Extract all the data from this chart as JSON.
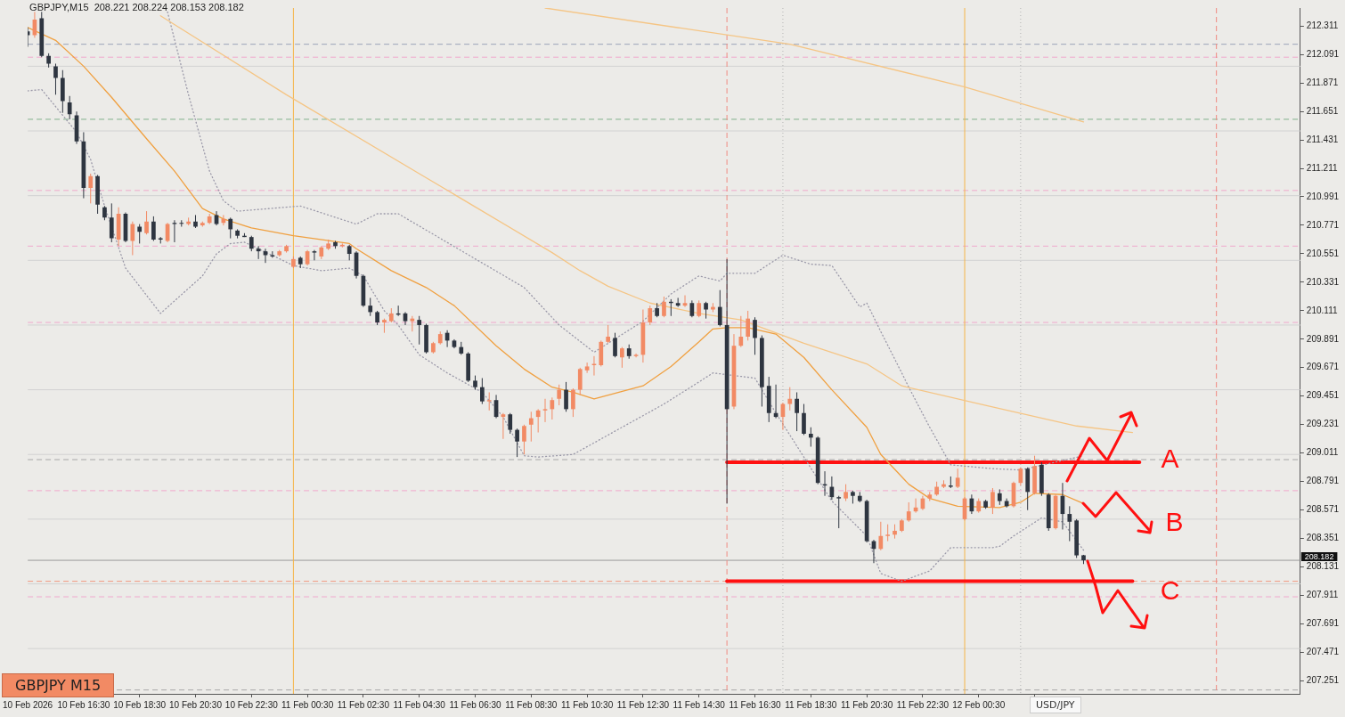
{
  "chart_data": {
    "type": "candlestick",
    "title": "GBPJPY,M15  208.221 208.224 208.153 208.182",
    "x": [
      "2026-02-10T14:30",
      "2026-02-10T14:45",
      "2026-02-10T15:00",
      "2026-02-10T15:15",
      "2026-02-10T15:30",
      "2026-02-10T15:45",
      "2026-02-10T16:00",
      "2026-02-10T16:15",
      "2026-02-10T16:30",
      "2026-02-10T16:45",
      "2026-02-10T17:00",
      "2026-02-10T17:15",
      "2026-02-10T17:30",
      "2026-02-10T17:45",
      "2026-02-10T18:00",
      "2026-02-10T18:15",
      "2026-02-10T18:30",
      "2026-02-10T18:45",
      "2026-02-10T19:00",
      "2026-02-10T19:15",
      "2026-02-10T19:30",
      "2026-02-10T19:45",
      "2026-02-10T20:00",
      "2026-02-10T20:15",
      "2026-02-10T20:30",
      "2026-02-10T20:45",
      "2026-02-10T21:00",
      "2026-02-10T21:15",
      "2026-02-10T21:30",
      "2026-02-10T21:45",
      "2026-02-10T22:00",
      "2026-02-10T22:15",
      "2026-02-10T22:30",
      "2026-02-10T22:45",
      "2026-02-10T23:00",
      "2026-02-10T23:15",
      "2026-02-10T23:30",
      "2026-02-10T23:45",
      "2026-02-11T00:00",
      "2026-02-11T00:15",
      "2026-02-11T00:30",
      "2026-02-11T00:45",
      "2026-02-11T01:00",
      "2026-02-11T01:15",
      "2026-02-11T01:30",
      "2026-02-11T01:45",
      "2026-02-11T02:00",
      "2026-02-11T02:15",
      "2026-02-11T02:30",
      "2026-02-11T02:45",
      "2026-02-11T03:00",
      "2026-02-11T03:15",
      "2026-02-11T03:30",
      "2026-02-11T03:45",
      "2026-02-11T04:00",
      "2026-02-11T04:15",
      "2026-02-11T04:30",
      "2026-02-11T04:45",
      "2026-02-11T05:00",
      "2026-02-11T05:15",
      "2026-02-11T05:30",
      "2026-02-11T05:45",
      "2026-02-11T06:00",
      "2026-02-11T06:15",
      "2026-02-11T06:30",
      "2026-02-11T06:45",
      "2026-02-11T07:00",
      "2026-02-11T07:15",
      "2026-02-11T07:30",
      "2026-02-11T07:45",
      "2026-02-11T08:00",
      "2026-02-11T08:15",
      "2026-02-11T08:30",
      "2026-02-11T08:45",
      "2026-02-11T09:00",
      "2026-02-11T09:15",
      "2026-02-11T09:30",
      "2026-02-11T09:45",
      "2026-02-11T10:00",
      "2026-02-11T10:15",
      "2026-02-11T10:30",
      "2026-02-11T10:45",
      "2026-02-11T11:00",
      "2026-02-11T11:15",
      "2026-02-11T11:30",
      "2026-02-11T11:45",
      "2026-02-11T12:00",
      "2026-02-11T12:15",
      "2026-02-11T12:30",
      "2026-02-11T12:45",
      "2026-02-11T13:00",
      "2026-02-11T13:15",
      "2026-02-11T13:30",
      "2026-02-11T13:45",
      "2026-02-11T14:00",
      "2026-02-11T14:15",
      "2026-02-11T14:30",
      "2026-02-11T14:45",
      "2026-02-11T15:00",
      "2026-02-11T15:15",
      "2026-02-11T15:30",
      "2026-02-11T15:45",
      "2026-02-11T16:00",
      "2026-02-11T16:15",
      "2026-02-11T16:30",
      "2026-02-11T16:45",
      "2026-02-11T17:00",
      "2026-02-11T17:15",
      "2026-02-11T17:30",
      "2026-02-11T17:45",
      "2026-02-11T18:00",
      "2026-02-11T18:15",
      "2026-02-11T18:30",
      "2026-02-11T18:45",
      "2026-02-11T19:00",
      "2026-02-11T19:15",
      "2026-02-11T19:30",
      "2026-02-11T19:45",
      "2026-02-11T20:00",
      "2026-02-11T20:15",
      "2026-02-11T20:30",
      "2026-02-11T20:45",
      "2026-02-11T21:00",
      "2026-02-11T21:15",
      "2026-02-11T21:30",
      "2026-02-11T21:45",
      "2026-02-11T22:00",
      "2026-02-11T22:15",
      "2026-02-11T22:30",
      "2026-02-11T22:45",
      "2026-02-11T23:00",
      "2026-02-11T23:15",
      "2026-02-11T23:30",
      "2026-02-11T23:45",
      "2026-02-12T00:00",
      "2026-02-12T00:15",
      "2026-02-12T00:30",
      "2026-02-12T00:45",
      "2026-02-12T01:00",
      "2026-02-12T01:15",
      "2026-02-12T01:30",
      "2026-02-12T01:45",
      "2026-02-12T02:00",
      "2026-02-12T02:15",
      "2026-02-12T02:30",
      "2026-02-12T02:45",
      "2026-02-12T03:00",
      "2026-02-12T03:15",
      "2026-02-12T03:30",
      "2026-02-12T03:45",
      "2026-02-12T04:00",
      "2026-02-12T04:15"
    ],
    "ohlc": [
      [
        212.27,
        212.3,
        212.15,
        212.24
      ],
      [
        212.24,
        212.42,
        212.22,
        212.36
      ],
      [
        212.37,
        212.42,
        212.07,
        212.08
      ],
      [
        212.08,
        212.1,
        211.99,
        212.02
      ],
      [
        212.0,
        212.02,
        211.78,
        211.91
      ],
      [
        211.91,
        211.97,
        211.64,
        211.73
      ],
      [
        211.72,
        211.77,
        211.59,
        211.63
      ],
      [
        211.62,
        211.65,
        211.4,
        211.42
      ],
      [
        211.42,
        211.49,
        210.98,
        211.06
      ],
      [
        211.06,
        211.17,
        210.94,
        211.15
      ],
      [
        211.15,
        211.16,
        210.86,
        210.93
      ],
      [
        210.91,
        210.92,
        210.81,
        210.83
      ],
      [
        210.83,
        210.94,
        210.64,
        210.67
      ],
      [
        210.66,
        210.91,
        210.61,
        210.86
      ],
      [
        210.86,
        210.87,
        210.64,
        210.65
      ],
      [
        210.65,
        210.8,
        210.54,
        210.78
      ],
      [
        210.76,
        210.78,
        210.63,
        210.72
      ],
      [
        210.71,
        210.88,
        210.7,
        210.8
      ],
      [
        210.8,
        210.84,
        210.65,
        210.66
      ],
      [
        210.67,
        210.68,
        210.63,
        210.66
      ],
      [
        210.65,
        210.79,
        210.64,
        210.78
      ],
      [
        210.79,
        210.81,
        210.64,
        210.78
      ],
      [
        210.79,
        210.81,
        210.76,
        210.79
      ],
      [
        210.78,
        210.83,
        210.77,
        210.8
      ],
      [
        210.8,
        210.85,
        210.75,
        210.76
      ],
      [
        210.77,
        210.8,
        210.76,
        210.79
      ],
      [
        210.79,
        210.86,
        210.78,
        210.84
      ],
      [
        210.85,
        210.88,
        210.77,
        210.78
      ],
      [
        210.79,
        210.85,
        210.77,
        210.82
      ],
      [
        210.82,
        210.83,
        210.67,
        210.74
      ],
      [
        210.73,
        210.74,
        210.67,
        210.69
      ],
      [
        210.69,
        210.71,
        210.68,
        210.68
      ],
      [
        210.68,
        210.69,
        210.57,
        210.59
      ],
      [
        210.59,
        210.61,
        210.51,
        210.57
      ],
      [
        210.57,
        210.59,
        210.48,
        210.54
      ],
      [
        210.54,
        210.57,
        210.52,
        210.53
      ],
      [
        210.54,
        210.58,
        210.53,
        210.57
      ],
      [
        210.57,
        210.62,
        210.56,
        210.61
      ],
      [
        210.45,
        210.53,
        210.44,
        210.51
      ],
      [
        210.52,
        210.53,
        210.44,
        210.47
      ],
      [
        210.47,
        210.58,
        210.46,
        210.57
      ],
      [
        210.57,
        210.58,
        210.5,
        210.56
      ],
      [
        210.53,
        210.61,
        210.51,
        210.6
      ],
      [
        210.59,
        210.66,
        210.58,
        210.63
      ],
      [
        210.64,
        210.65,
        210.59,
        210.61
      ],
      [
        210.61,
        210.63,
        210.6,
        210.62
      ],
      [
        210.61,
        210.62,
        210.5,
        210.55
      ],
      [
        210.56,
        210.57,
        210.36,
        210.38
      ],
      [
        210.38,
        210.39,
        210.14,
        210.15
      ],
      [
        210.15,
        210.21,
        210.07,
        210.1
      ],
      [
        210.1,
        210.11,
        210.0,
        210.02
      ],
      [
        210.02,
        210.05,
        209.94,
        210.04
      ],
      [
        210.03,
        210.13,
        210.02,
        210.09
      ],
      [
        210.09,
        210.15,
        210.07,
        210.08
      ],
      [
        210.09,
        210.1,
        210.0,
        210.03
      ],
      [
        210.03,
        210.07,
        209.95,
        210.05
      ],
      [
        210.04,
        210.07,
        209.85,
        210.0
      ],
      [
        210.0,
        210.01,
        209.78,
        209.79
      ],
      [
        209.79,
        209.87,
        209.78,
        209.86
      ],
      [
        209.86,
        209.95,
        209.85,
        209.93
      ],
      [
        209.94,
        209.96,
        209.83,
        209.88
      ],
      [
        209.88,
        209.89,
        209.82,
        209.83
      ],
      [
        209.83,
        209.87,
        209.77,
        209.78
      ],
      [
        209.78,
        209.79,
        209.56,
        209.57
      ],
      [
        209.57,
        209.61,
        209.5,
        209.52
      ],
      [
        209.52,
        209.59,
        209.39,
        209.41
      ],
      [
        209.41,
        209.48,
        209.34,
        209.42
      ],
      [
        209.42,
        209.46,
        209.28,
        209.29
      ],
      [
        209.29,
        209.32,
        209.12,
        209.31
      ],
      [
        209.31,
        209.32,
        209.16,
        209.19
      ],
      [
        209.19,
        209.2,
        208.98,
        209.1
      ],
      [
        209.1,
        209.23,
        209.0,
        209.22
      ],
      [
        209.23,
        209.33,
        209.1,
        209.28
      ],
      [
        209.29,
        209.35,
        209.17,
        209.34
      ],
      [
        209.34,
        209.43,
        209.25,
        209.35
      ],
      [
        209.35,
        209.44,
        209.27,
        209.42
      ],
      [
        209.43,
        209.54,
        209.38,
        209.5
      ],
      [
        209.5,
        209.56,
        209.33,
        209.35
      ],
      [
        209.35,
        209.51,
        209.29,
        209.5
      ],
      [
        209.5,
        209.67,
        209.46,
        209.66
      ],
      [
        209.65,
        209.71,
        209.63,
        209.68
      ],
      [
        209.69,
        209.76,
        209.61,
        209.7
      ],
      [
        209.69,
        209.88,
        209.68,
        209.87
      ],
      [
        209.87,
        210.0,
        209.86,
        209.91
      ],
      [
        209.9,
        209.94,
        209.75,
        209.76
      ],
      [
        209.75,
        209.83,
        209.67,
        209.82
      ],
      [
        209.82,
        209.85,
        209.74,
        209.76
      ],
      [
        209.76,
        209.78,
        209.75,
        209.77
      ],
      [
        209.77,
        210.12,
        209.71,
        210.02
      ],
      [
        210.02,
        210.15,
        210.0,
        210.13
      ],
      [
        210.13,
        210.17,
        210.06,
        210.07
      ],
      [
        210.07,
        210.22,
        210.06,
        210.18
      ],
      [
        210.18,
        210.2,
        210.07,
        210.17
      ],
      [
        210.17,
        210.21,
        210.14,
        210.15
      ],
      [
        210.15,
        210.23,
        210.14,
        210.17
      ],
      [
        210.17,
        210.19,
        210.06,
        210.07
      ],
      [
        210.07,
        210.19,
        210.06,
        210.17
      ],
      [
        210.17,
        210.18,
        210.05,
        210.12
      ],
      [
        210.12,
        210.17,
        210.1,
        210.14
      ],
      [
        210.14,
        210.27,
        209.99,
        210.0
      ],
      [
        210.0,
        210.51,
        208.62,
        209.35
      ],
      [
        209.37,
        209.93,
        209.35,
        209.84
      ],
      [
        209.84,
        210.07,
        209.83,
        209.91
      ],
      [
        209.91,
        210.11,
        209.88,
        210.05
      ],
      [
        210.04,
        210.06,
        209.77,
        209.9
      ],
      [
        209.9,
        209.92,
        209.37,
        209.52
      ],
      [
        209.53,
        209.6,
        209.25,
        209.32
      ],
      [
        209.32,
        209.54,
        209.28,
        209.29
      ],
      [
        209.29,
        209.4,
        209.19,
        209.39
      ],
      [
        209.39,
        209.52,
        209.34,
        209.43
      ],
      [
        209.43,
        209.48,
        209.18,
        209.32
      ],
      [
        209.32,
        209.39,
        209.15,
        209.16
      ],
      [
        209.16,
        209.21,
        209.06,
        209.13
      ],
      [
        209.13,
        209.14,
        208.77,
        208.78
      ],
      [
        208.77,
        208.87,
        208.68,
        208.76
      ],
      [
        208.75,
        208.83,
        208.65,
        208.67
      ],
      [
        208.67,
        208.68,
        208.43,
        208.66
      ],
      [
        208.66,
        208.77,
        208.64,
        208.71
      ],
      [
        208.71,
        208.72,
        208.62,
        208.68
      ],
      [
        208.68,
        208.71,
        208.63,
        208.64
      ],
      [
        208.64,
        208.65,
        208.32,
        208.33
      ],
      [
        208.33,
        208.34,
        208.16,
        208.27
      ],
      [
        208.27,
        208.48,
        208.26,
        208.37
      ],
      [
        208.37,
        208.46,
        208.33,
        208.38
      ],
      [
        208.38,
        208.46,
        208.35,
        208.41
      ],
      [
        208.41,
        208.5,
        208.4,
        208.49
      ],
      [
        208.49,
        208.63,
        208.48,
        208.56
      ],
      [
        208.56,
        208.66,
        208.55,
        208.59
      ],
      [
        208.58,
        208.68,
        208.57,
        208.66
      ],
      [
        208.66,
        208.71,
        208.64,
        208.69
      ],
      [
        208.69,
        208.79,
        208.68,
        208.75
      ],
      [
        208.75,
        208.8,
        208.74,
        208.77
      ],
      [
        208.76,
        208.83,
        208.74,
        208.75
      ],
      [
        208.75,
        208.89,
        208.74,
        208.82
      ],
      [
        208.5,
        208.67,
        208.49,
        208.66
      ],
      [
        208.66,
        208.69,
        208.54,
        208.56
      ],
      [
        208.56,
        208.66,
        208.55,
        208.64
      ],
      [
        208.64,
        208.65,
        208.58,
        208.59
      ],
      [
        208.59,
        208.74,
        208.54,
        208.71
      ],
      [
        208.7,
        208.73,
        208.61,
        208.64
      ],
      [
        208.64,
        208.66,
        208.59,
        208.6
      ],
      [
        208.6,
        208.79,
        208.59,
        208.78
      ],
      [
        208.78,
        208.9,
        208.76,
        208.89
      ],
      [
        208.89,
        208.9,
        208.57,
        208.71
      ],
      [
        208.7,
        208.99,
        208.69,
        208.91
      ],
      [
        208.92,
        208.94,
        208.68,
        208.7
      ],
      [
        208.69,
        208.7,
        208.41,
        208.43
      ],
      [
        208.43,
        208.69,
        208.42,
        208.68
      ],
      [
        208.68,
        208.78,
        208.42,
        208.54
      ],
      [
        208.54,
        208.6,
        208.33,
        208.48
      ],
      [
        208.49,
        208.5,
        208.2,
        208.22
      ],
      [
        208.221,
        208.224,
        208.153,
        208.182
      ]
    ],
    "colors": [
      "#2e3540",
      "#f28a64",
      "#2e3540",
      "#2e3540",
      "#2e3540",
      "#2e3540",
      "#2e3540",
      "#2e3540",
      "#2e3540",
      "#f28a64",
      "#2e3540",
      "#2e3540",
      "#2e3540",
      "#f28a64",
      "#2e3540",
      "#f28a64",
      "#2e3540",
      "#f28a64",
      "#2e3540",
      "#2e3540",
      "#f28a64",
      "#2e3540",
      "#2e3540",
      "#f28a64",
      "#2e3540",
      "#f28a64",
      "#f28a64",
      "#2e3540",
      "#f28a64",
      "#2e3540",
      "#2e3540",
      "#2e3540",
      "#2e3540",
      "#2e3540",
      "#2e3540",
      "#2e3540",
      "#f28a64",
      "#f28a64",
      "#f28a64",
      "#2e3540",
      "#f28a64",
      "#2e3540",
      "#f28a64",
      "#f28a64",
      "#2e3540",
      "#f28a64",
      "#2e3540",
      "#2e3540",
      "#2e3540",
      "#2e3540",
      "#2e3540",
      "#f28a64",
      "#f28a64",
      "#2e3540",
      "#2e3540",
      "#f28a64",
      "#2e3540",
      "#2e3540",
      "#f28a64",
      "#f28a64",
      "#2e3540",
      "#2e3540",
      "#2e3540",
      "#2e3540",
      "#2e3540",
      "#2e3540",
      "#f28a64",
      "#2e3540",
      "#f28a64",
      "#2e3540",
      "#2e3540",
      "#f28a64",
      "#f28a64",
      "#f28a64",
      "#f28a64",
      "#f28a64",
      "#f28a64",
      "#2e3540",
      "#f28a64",
      "#f28a64",
      "#f28a64",
      "#f28a64",
      "#f28a64",
      "#f28a64",
      "#2e3540",
      "#f28a64",
      "#2e3540",
      "#f28a64",
      "#f28a64",
      "#f28a64",
      "#2e3540",
      "#f28a64",
      "#2e3540",
      "#2e3540",
      "#f28a64",
      "#2e3540",
      "#f28a64",
      "#2e3540",
      "#f28a64",
      "#2e3540",
      "#2e3540",
      "#f28a64",
      "#f28a64",
      "#f28a64",
      "#2e3540",
      "#2e3540",
      "#2e3540",
      "#2e3540",
      "#f28a64",
      "#f28a64",
      "#2e3540",
      "#2e3540",
      "#2e3540",
      "#2e3540",
      "#2e3540",
      "#2e3540",
      "#2e3540",
      "#f28a64",
      "#2e3540",
      "#2e3540",
      "#2e3540",
      "#2e3540",
      "#f28a64",
      "#f28a64",
      "#f28a64",
      "#f28a64",
      "#f28a64",
      "#f28a64",
      "#f28a64",
      "#f28a64",
      "#f28a64",
      "#f28a64",
      "#2e3540",
      "#f28a64",
      "#f28a64",
      "#2e3540",
      "#f28a64",
      "#2e3540",
      "#f28a64",
      "#2e3540",
      "#2e3540",
      "#f28a64",
      "#f28a64",
      "#2e3540",
      "#f28a64",
      "#2e3540",
      "#2e3540",
      "#f28a64",
      "#2e3540",
      "#2e3540",
      "#2e3540",
      "#2e3540"
    ],
    "series": [
      {
        "type": "line",
        "color": "#f0a040",
        "line_style": "solid",
        "x": [
          "2026-02-10T14:30",
          "2026-02-10T15:30",
          "2026-02-10T16:30",
          "2026-02-10T17:30",
          "2026-02-10T18:45",
          "2026-02-10T19:45",
          "2026-02-10T20:45",
          "2026-02-10T21:30",
          "2026-02-10T22:30",
          "2026-02-11T00:00",
          "2026-02-11T02:00",
          "2026-02-11T02:15",
          "2026-02-11T03:30",
          "2026-02-11T04:45",
          "2026-02-11T05:45",
          "2026-02-11T07:15",
          "2026-02-11T08:15",
          "2026-02-11T09:15",
          "2026-02-11T10:00",
          "2026-02-11T10:45",
          "2026-02-11T12:30",
          "2026-02-11T13:30",
          "2026-02-11T14:30",
          "2026-02-11T15:00",
          "2026-02-11T15:30",
          "2026-02-11T16:15",
          "2026-02-11T17:15",
          "2026-02-11T18:15",
          "2026-02-11T19:15",
          "2026-02-11T20:30",
          "2026-02-11T21:00",
          "2026-02-11T22:00",
          "2026-02-11T22:45",
          "2026-02-11T23:45",
          "2026-02-12T01:15",
          "2026-02-12T02:00",
          "2026-02-12T02:30",
          "2026-02-12T03:30",
          "2026-02-12T04:15"
        ],
        "values": [
          212.3,
          212.2,
          212.0,
          211.76,
          211.44,
          211.19,
          210.9,
          210.82,
          210.75,
          210.69,
          210.63,
          210.59,
          210.42,
          210.29,
          210.15,
          209.84,
          209.66,
          209.52,
          209.48,
          209.43,
          209.53,
          209.68,
          209.87,
          209.97,
          209.98,
          209.98,
          209.93,
          209.75,
          209.5,
          209.21,
          209.0,
          208.77,
          208.66,
          208.6,
          208.59,
          208.63,
          208.7,
          208.69,
          208.62
        ]
      },
      {
        "type": "line",
        "color": "#f5c585",
        "line_style": "solid",
        "x": [
          "2026-02-10T19:15",
          "2026-02-10T23:45",
          "2026-02-11T04:30",
          "2026-02-11T09:15",
          "2026-02-11T10:15",
          "2026-02-11T11:15",
          "2026-02-11T12:45",
          "2026-02-11T14:30",
          "2026-02-11T16:00",
          "2026-02-11T18:15",
          "2026-02-11T20:30",
          "2026-02-11T21:45",
          "2026-02-12T00:45",
          "2026-02-12T04:00",
          "2026-02-12T06:00"
        ],
        "values": [
          212.39,
          211.78,
          211.17,
          210.56,
          210.42,
          210.3,
          210.17,
          210.09,
          210.04,
          209.86,
          209.7,
          209.53,
          209.38,
          209.22,
          209.17
        ]
      },
      {
        "type": "line",
        "color": "#f5c585",
        "line_style": "solid",
        "x": [
          "2026-02-11T09:00",
          "2026-02-11T17:45",
          "2026-02-12T00:00",
          "2026-02-12T04:15"
        ],
        "values": [
          212.45,
          212.17,
          211.84,
          211.57
        ]
      },
      {
        "type": "line",
        "color": "#9a98a8",
        "line_style": "dotted",
        "x": [
          "2026-02-10T19:30",
          "2026-02-10T20:15",
          "2026-02-10T21:00",
          "2026-02-10T21:30",
          "2026-02-10T22:00",
          "2026-02-11T00:15",
          "2026-02-11T02:15",
          "2026-02-11T03:00",
          "2026-02-11T03:45",
          "2026-02-11T08:15",
          "2026-02-11T09:30",
          "2026-02-11T10:45",
          "2026-02-11T12:30",
          "2026-02-11T13:30",
          "2026-02-11T14:30",
          "2026-02-11T15:15",
          "2026-02-11T15:30",
          "2026-02-11T16:30",
          "2026-02-11T17:30",
          "2026-02-11T18:30",
          "2026-02-11T19:15",
          "2026-02-11T20:15",
          "2026-02-11T20:30",
          "2026-02-11T21:00",
          "2026-02-11T21:45",
          "2026-02-11T22:00",
          "2026-02-11T22:45",
          "2026-02-11T23:30",
          "2026-02-12T01:00",
          "2026-02-12T02:00",
          "2026-02-12T04:15"
        ],
        "values": [
          212.42,
          211.78,
          211.19,
          210.96,
          210.88,
          210.92,
          210.78,
          210.86,
          210.86,
          210.29,
          210.0,
          209.79,
          210.03,
          210.24,
          210.38,
          210.34,
          210.4,
          210.4,
          210.54,
          210.47,
          210.46,
          210.14,
          210.17,
          209.95,
          209.63,
          209.52,
          209.21,
          208.92,
          208.89,
          208.88,
          208.99
        ]
      },
      {
        "type": "line",
        "color": "#9a98a8",
        "line_style": "dotted",
        "x": [
          "2026-02-10T14:30",
          "2026-02-10T15:00",
          "2026-02-10T16:15",
          "2026-02-10T16:45",
          "2026-02-10T17:15",
          "2026-02-10T18:00",
          "2026-02-10T19:15",
          "2026-02-10T20:45",
          "2026-02-10T21:15",
          "2026-02-10T21:45",
          "2026-02-10T22:15",
          "2026-02-10T22:45",
          "2026-02-11T00:00",
          "2026-02-11T01:00",
          "2026-02-11T02:00",
          "2026-02-11T02:30",
          "2026-02-11T03:15",
          "2026-02-11T03:45",
          "2026-02-11T04:30",
          "2026-02-11T05:30",
          "2026-02-11T06:45",
          "2026-02-11T07:30",
          "2026-02-11T08:15",
          "2026-02-11T08:45",
          "2026-02-11T10:00",
          "2026-02-11T13:15",
          "2026-02-11T14:30",
          "2026-02-11T15:00",
          "2026-02-11T16:30",
          "2026-02-11T17:15",
          "2026-02-11T18:15",
          "2026-02-11T19:15",
          "2026-02-11T20:30",
          "2026-02-11T21:00",
          "2026-02-11T21:45",
          "2026-02-11T22:45",
          "2026-02-11T23:30",
          "2026-02-12T01:00",
          "2026-02-12T01:15",
          "2026-02-12T01:45",
          "2026-02-12T02:45",
          "2026-02-12T03:30",
          "2026-02-12T04:15"
        ],
        "values": [
          211.81,
          211.82,
          211.49,
          211.28,
          210.92,
          210.44,
          210.09,
          210.38,
          210.55,
          210.63,
          210.64,
          210.59,
          210.46,
          210.42,
          210.44,
          210.38,
          210.11,
          210.0,
          209.77,
          209.63,
          209.48,
          209.29,
          208.99,
          208.98,
          209.0,
          209.39,
          209.56,
          209.63,
          209.59,
          209.32,
          208.98,
          208.64,
          208.37,
          208.08,
          208.02,
          208.1,
          208.28,
          208.28,
          208.29,
          208.37,
          208.51,
          208.48,
          208.26
        ]
      },
      {
        "type": "line",
        "color": "#ff1010",
        "line_style": "solid",
        "x": [
          "2026-02-11T15:30",
          "2026-02-12T06:15"
        ],
        "values": [
          208.94,
          208.94
        ]
      },
      {
        "type": "line",
        "color": "#ff1010",
        "line_style": "solid",
        "x": [
          "2026-02-11T15:30",
          "2026-02-12T06:00"
        ],
        "values": [
          208.02,
          208.02
        ]
      }
    ],
    "xlim": [
      "2026-02-10T14:30",
      "2026-02-12T12:00"
    ],
    "xticks": [
      {
        "value": "2026-02-10T14:30",
        "label": "10 Feb 2026"
      },
      {
        "value": "2026-02-10T16:30",
        "label": "10 Feb 16:30"
      },
      {
        "value": "2026-02-10T18:30",
        "label": "10 Feb 18:30"
      },
      {
        "value": "2026-02-10T20:30",
        "label": "10 Feb 20:30"
      },
      {
        "value": "2026-02-10T22:30",
        "label": "10 Feb 22:30"
      },
      {
        "value": "2026-02-11T00:30",
        "label": "11 Feb 00:30"
      },
      {
        "value": "2026-02-11T02:30",
        "label": "11 Feb 02:30"
      },
      {
        "value": "2026-02-11T04:30",
        "label": "11 Feb 04:30"
      },
      {
        "value": "2026-02-11T06:30",
        "label": "11 Feb 06:30"
      },
      {
        "value": "2026-02-11T08:30",
        "label": "11 Feb 08:30"
      },
      {
        "value": "2026-02-11T10:30",
        "label": "11 Feb 10:30"
      },
      {
        "value": "2026-02-11T12:30",
        "label": "11 Feb 12:30"
      },
      {
        "value": "2026-02-11T14:30",
        "label": "11 Feb 14:30"
      },
      {
        "value": "2026-02-11T16:30",
        "label": "11 Feb 16:30"
      },
      {
        "value": "2026-02-11T18:30",
        "label": "11 Feb 18:30"
      },
      {
        "value": "2026-02-11T20:30",
        "label": "11 Feb 20:30"
      },
      {
        "value": "2026-02-11T22:30",
        "label": "11 Feb 22:30"
      },
      {
        "value": "2026-02-12T00:30",
        "label": "12 Feb 00:30"
      },
      {
        "value": "2026-02-12T02:30",
        "label": null
      }
    ],
    "ylim": [
      207.15,
      212.45
    ],
    "yticks": [
      212.311,
      212.091,
      211.871,
      211.651,
      211.431,
      211.211,
      210.991,
      210.771,
      210.551,
      210.331,
      210.111,
      209.891,
      209.671,
      209.451,
      209.231,
      209.011,
      208.791,
      208.571,
      208.351,
      208.131,
      207.911,
      207.691,
      207.471,
      207.251
    ],
    "ref_lines": [
      {
        "axis": "y",
        "value": 212.0,
        "color": "#d2d2d2",
        "line_style": "solid"
      },
      {
        "axis": "y",
        "value": 211.5,
        "color": "#d2d2d2",
        "line_style": "solid"
      },
      {
        "axis": "y",
        "value": 211.0,
        "color": "#d2d2d2",
        "line_style": "solid"
      },
      {
        "axis": "y",
        "value": 210.5,
        "color": "#d2d2d2",
        "line_style": "solid"
      },
      {
        "axis": "y",
        "value": 210.0,
        "color": "#d2d2d2",
        "line_style": "solid"
      },
      {
        "axis": "y",
        "value": 209.5,
        "color": "#d2d2d2",
        "line_style": "solid"
      },
      {
        "axis": "y",
        "value": 209.0,
        "color": "#d2d2d2",
        "line_style": "solid"
      },
      {
        "axis": "y",
        "value": 208.5,
        "color": "#d2d2d2",
        "line_style": "solid"
      },
      {
        "axis": "y",
        "value": 208.0,
        "color": "#d2d2d2",
        "line_style": "solid"
      },
      {
        "axis": "y",
        "value": 207.5,
        "color": "#d2d2d2",
        "line_style": "solid"
      },
      {
        "axis": "y",
        "value": 212.17,
        "color": "#9aa3b8",
        "line_style": "dashed"
      },
      {
        "axis": "y",
        "value": 212.07,
        "color": "#f0a8cc",
        "line_style": "dashed"
      },
      {
        "axis": "y",
        "value": 211.59,
        "color": "#80b08c",
        "line_style": "dashed"
      },
      {
        "axis": "y",
        "value": 211.04,
        "color": "#f0a8cc",
        "line_style": "dashed"
      },
      {
        "axis": "y",
        "value": 210.61,
        "color": "#f0a8cc",
        "line_style": "dashed"
      },
      {
        "axis": "y",
        "value": 210.02,
        "color": "#f0a8cc",
        "line_style": "dashed"
      },
      {
        "axis": "y",
        "value": 208.96,
        "color": "#a8a8a8",
        "line_style": "dashed"
      },
      {
        "axis": "y",
        "value": 208.72,
        "color": "#f0a8cc",
        "line_style": "dashed"
      },
      {
        "axis": "y",
        "value": 208.02,
        "color": "#f09a80",
        "line_style": "dashed"
      },
      {
        "axis": "y",
        "value": 207.9,
        "color": "#f0a8cc",
        "line_style": "dashed"
      },
      {
        "axis": "y",
        "value": 207.18,
        "color": "#a8a8a8",
        "line_style": "dashed"
      },
      {
        "axis": "y",
        "value": 208.182,
        "label": "208.182",
        "color": "#9a9a9a",
        "line_style": "solid"
      },
      {
        "axis": "x",
        "value": "2026-02-11T00:00",
        "color": "#f5b547",
        "line_style": "solid"
      },
      {
        "axis": "x",
        "value": "2026-02-12T00:00",
        "color": "#f5b547",
        "line_style": "solid"
      },
      {
        "axis": "x",
        "value": "2026-02-11T15:30",
        "color": "#f08a80",
        "line_style": "dashed"
      },
      {
        "axis": "x",
        "value": "2026-02-12T09:00",
        "color": "#f08a80",
        "line_style": "dashed"
      },
      {
        "axis": "x",
        "value": "2026-02-11T17:30",
        "color": "#b4b4b4",
        "line_style": "dotted"
      },
      {
        "axis": "x",
        "value": "2026-02-12T02:00",
        "color": "#b4b4b4",
        "line_style": "dotted"
      }
    ],
    "annotations": [
      {
        "text": "A",
        "x": "2026-02-12T04:15",
        "y": 208.94
      },
      {
        "text": "B",
        "x": "2026-02-12T04:15",
        "y": 208.62
      },
      {
        "text": "C",
        "x": "2026-02-12T04:15",
        "y": 208.182
      },
      "GBPJPY M15",
      "USD/JPY"
    ]
  }
}
